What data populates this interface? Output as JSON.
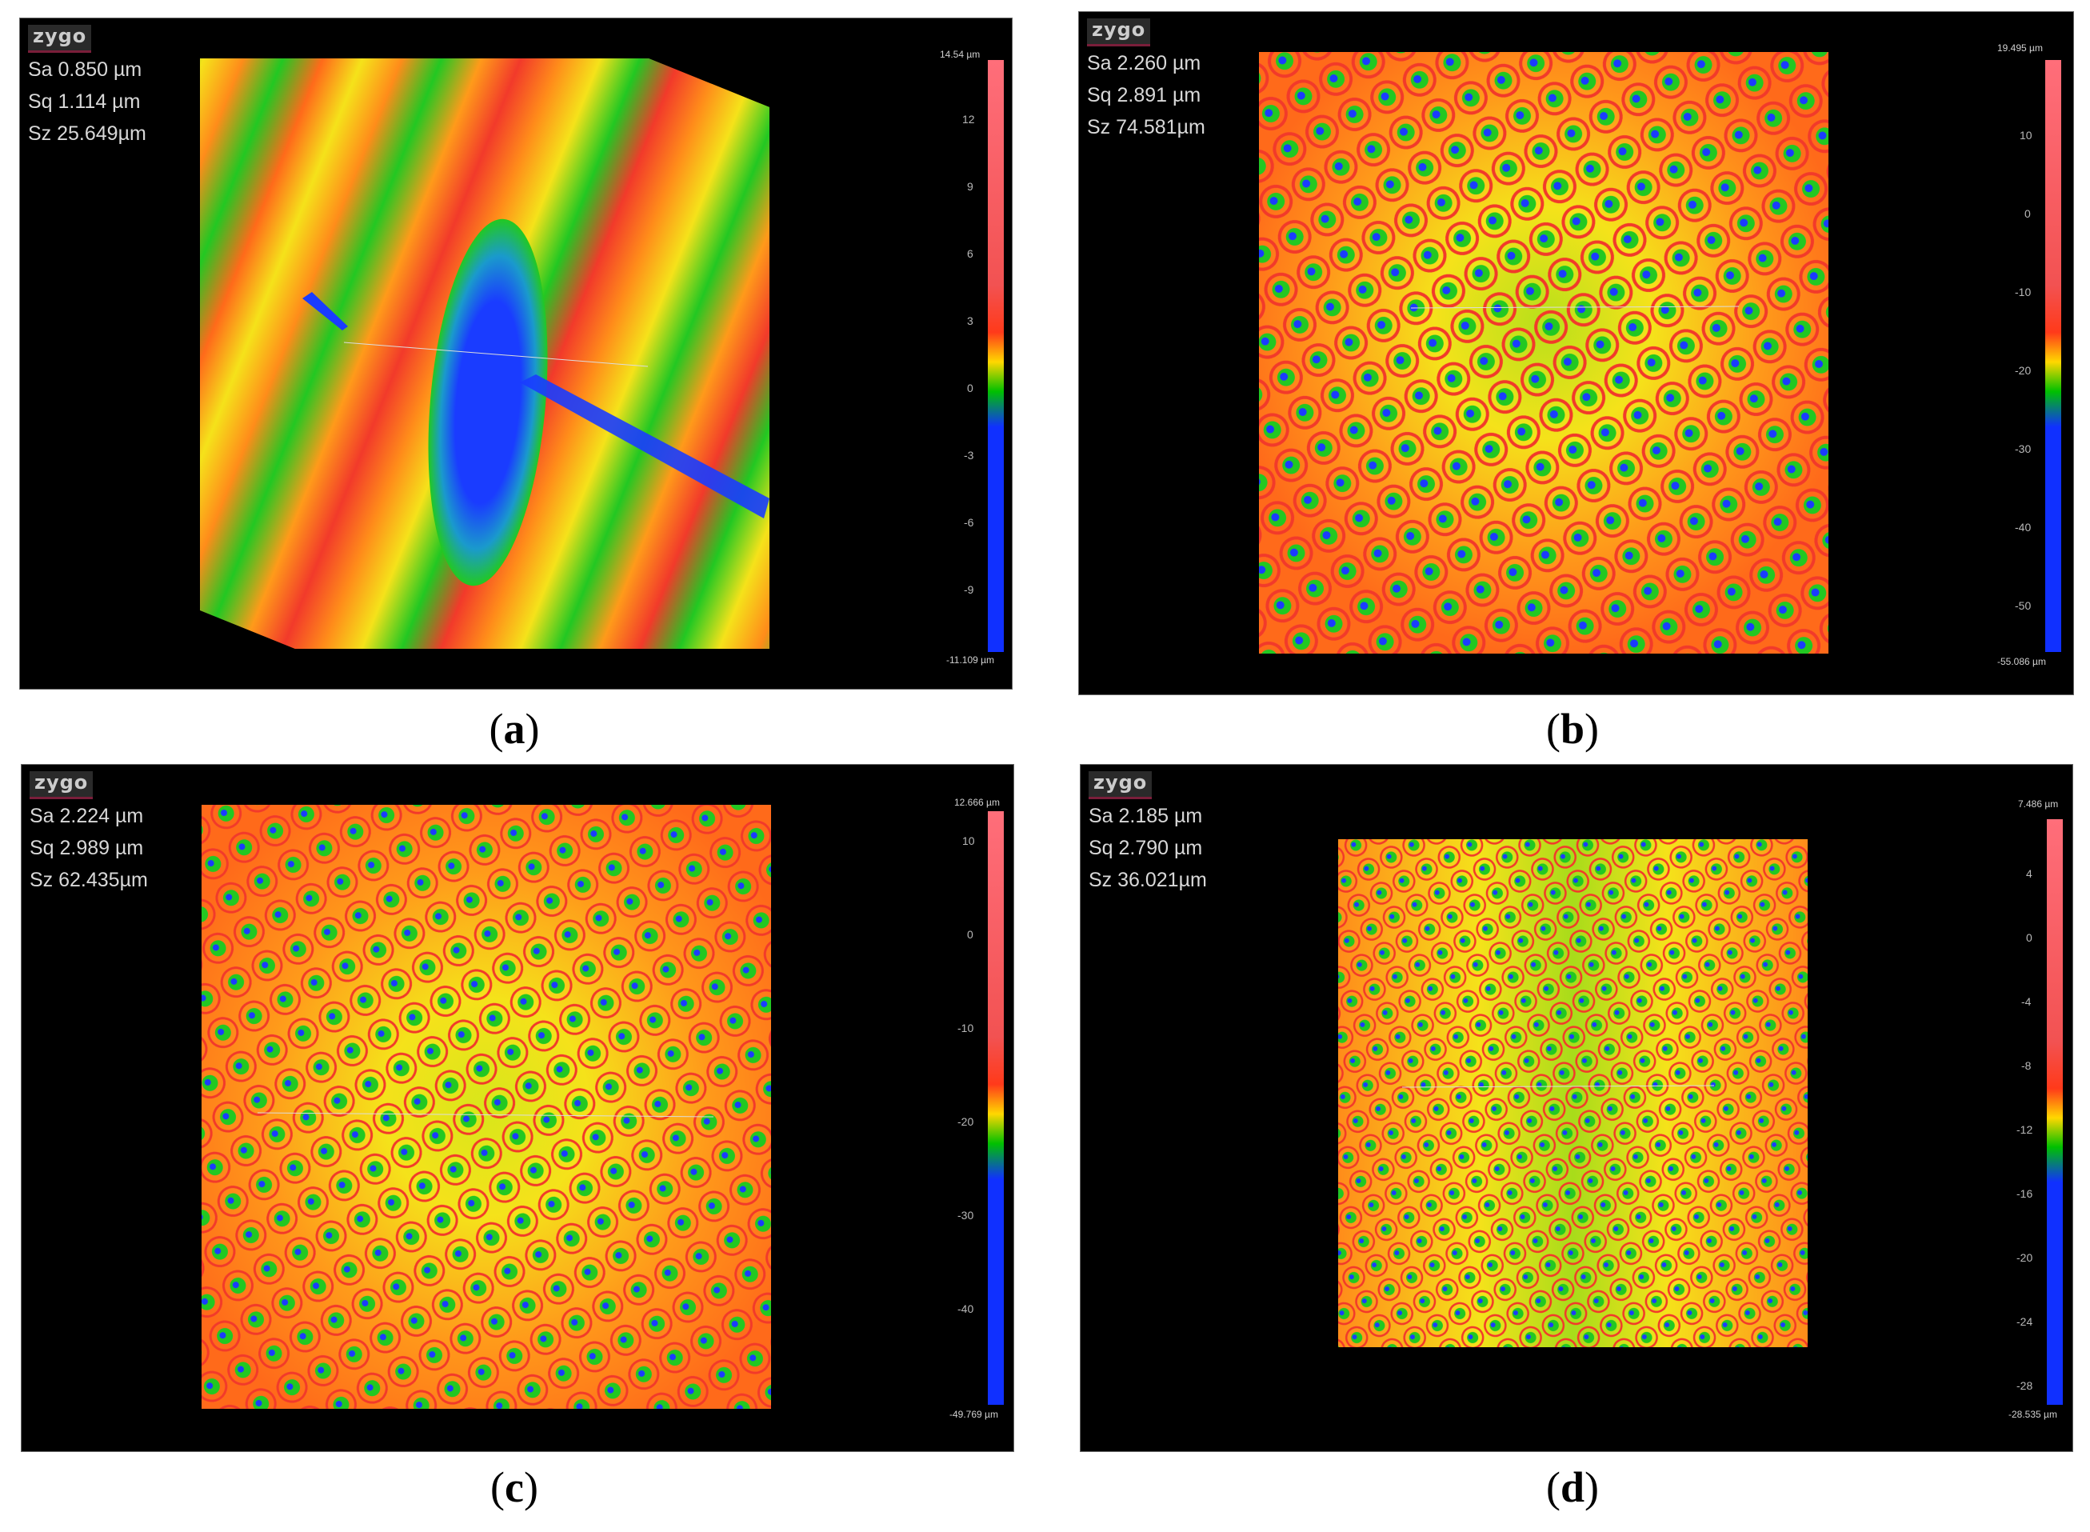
{
  "panels": [
    {
      "id": "a",
      "logo": "zygo",
      "stats": [
        "Sa 0.850  µm",
        "Sq 1.114  µm",
        "Sz 25.649µm"
      ],
      "colorbar": {
        "max": "14.54 µm",
        "min": "-11.109 µm",
        "ticks": [
          "12",
          "9",
          "6",
          "3",
          "0",
          "-3",
          "-6",
          "-9"
        ]
      },
      "caption_letter": "a"
    },
    {
      "id": "b",
      "logo": "zygo",
      "stats": [
        "Sa 2.260  µm",
        "Sq 2.891  µm",
        "Sz 74.581µm"
      ],
      "colorbar": {
        "max": "19.495 µm",
        "min": "-55.086 µm",
        "ticks": [
          "10",
          "0",
          "-10",
          "-20",
          "-30",
          "-40",
          "-50"
        ]
      },
      "caption_letter": "b"
    },
    {
      "id": "c",
      "logo": "zygo",
      "stats": [
        "Sa 2.224  µm",
        "Sq 2.989  µm",
        "Sz 62.435µm"
      ],
      "colorbar": {
        "max": "12.666 µm",
        "min": "-49.769 µm",
        "ticks": [
          "10",
          "0",
          "-10",
          "-20",
          "-30",
          "-40"
        ]
      },
      "caption_letter": "c"
    },
    {
      "id": "d",
      "logo": "zygo",
      "stats": [
        "Sa 2.185  µm",
        "Sq 2.790  µm",
        "Sz 36.021µm"
      ],
      "colorbar": {
        "max": "7.486 µm",
        "min": "-28.535 µm",
        "ticks": [
          "4",
          "0",
          "-4",
          "-8",
          "-12",
          "-16",
          "-20",
          "-24",
          "-28"
        ]
      },
      "caption_letter": "d"
    }
  ],
  "colors": {
    "red": "#f23a2a",
    "orange": "#ff8c1a",
    "yellow": "#f5e21a",
    "green": "#22c822",
    "blue": "#1a3cff",
    "background": "#000000"
  }
}
